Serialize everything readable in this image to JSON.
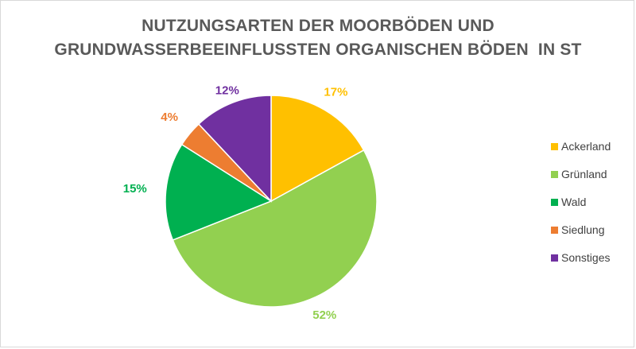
{
  "chart_data": {
    "type": "pie",
    "title_lines": [
      "NUTZUNGSARTEN DER MOORBÖDEN UND",
      "GRUNDWASSERBEEINFLUSSTEN ORGANISCHEN BÖDEN  IN ST"
    ],
    "categories": [
      "Ackerland",
      "Grünland",
      "Wald",
      "Siedlung",
      "Sonstiges"
    ],
    "values": [
      17,
      52,
      15,
      4,
      12
    ],
    "labels": [
      "17%",
      "52%",
      "15%",
      "4%",
      "12%"
    ],
    "colors": [
      "#ffc000",
      "#92d050",
      "#00b050",
      "#ed7d31",
      "#7030a0"
    ],
    "legend_position": "right"
  }
}
